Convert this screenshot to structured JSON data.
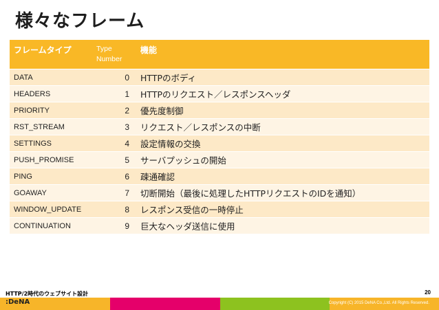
{
  "slide": {
    "title": "様々なフレーム"
  },
  "table": {
    "headers": {
      "name": "フレームタイプ",
      "type": "Type Number",
      "func": "機能"
    },
    "rows": [
      {
        "name": "DATA",
        "type": "0",
        "func": "HTTPのボディ"
      },
      {
        "name": "HEADERS",
        "type": "1",
        "func": "HTTPのリクエスト／レスポンスヘッダ"
      },
      {
        "name": "PRIORITY",
        "type": "2",
        "func": "優先度制御"
      },
      {
        "name": "RST_STREAM",
        "type": "3",
        "func": "リクエスト／レスポンスの中断"
      },
      {
        "name": "SETTINGS",
        "type": "4",
        "func": "設定情報の交換"
      },
      {
        "name": "PUSH_PROMISE",
        "type": "5",
        "func": "サーバプッシュの開始"
      },
      {
        "name": "PING",
        "type": "6",
        "func": "疎通確認"
      },
      {
        "name": "GOAWAY",
        "type": "7",
        "func": "切断開始（最後に処理したHTTPリクエストのIDを通知）"
      },
      {
        "name": "WINDOW_UPDATE",
        "type": "8",
        "func": "レスポンス受信の一時停止"
      },
      {
        "name": "CONTINUATION",
        "type": "9",
        "func": "巨大なヘッダ送信に使用"
      }
    ]
  },
  "footer": {
    "deck_title": "HTTP/2時代のウェブサイト設計",
    "page_number": "20",
    "logo": ":DeNA",
    "copyright": "Copyright (C) 2015 DeNA Co.,Ltd. All Rights Reserved.",
    "stripe_colors": [
      "#f7b529",
      "#e5006a",
      "#8dc21f",
      "#f7b529"
    ]
  }
}
